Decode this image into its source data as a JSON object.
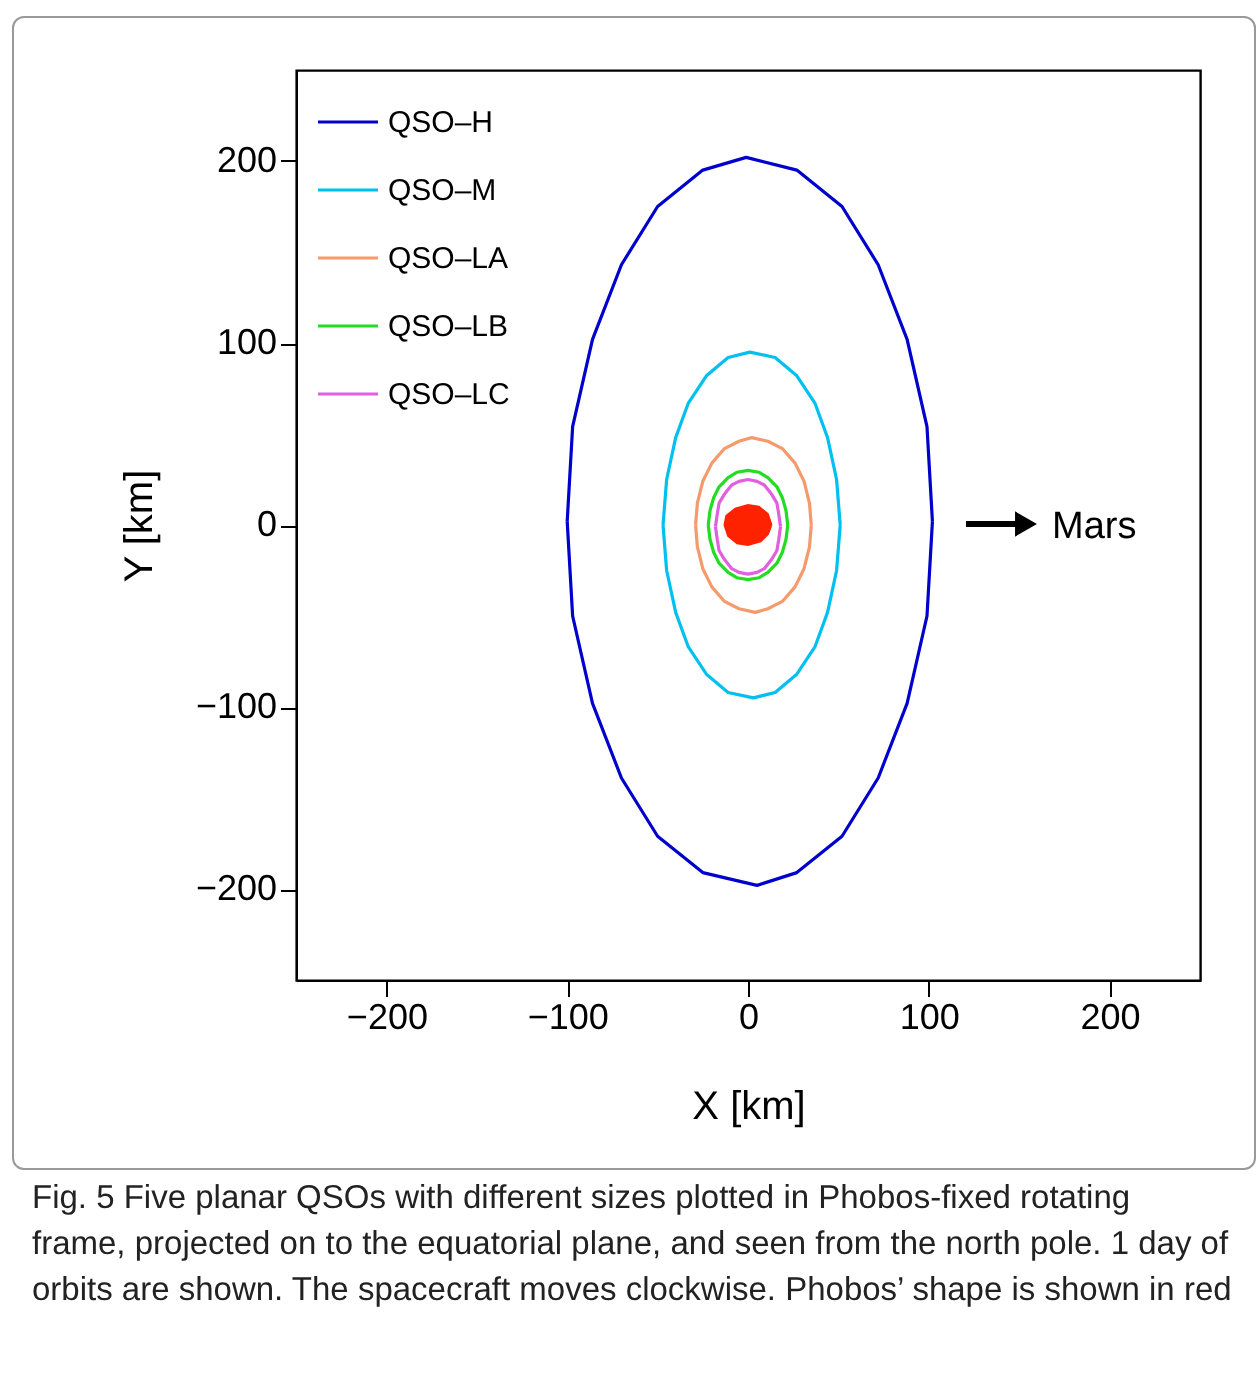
{
  "chart_data": {
    "type": "line",
    "xlabel": "X [km]",
    "ylabel": "Y [km]",
    "xlim": [
      -250,
      250
    ],
    "ylim": [
      -250,
      250
    ],
    "xticks": [
      -200,
      -100,
      0,
      100,
      200
    ],
    "yticks": [
      -200,
      -100,
      0,
      100,
      200
    ],
    "legend": "top left",
    "grid": false,
    "line_style": "solid",
    "marker": "none",
    "series": [
      {
        "name": "QSO–H",
        "color": "#0000cc",
        "x": [
          102,
          99,
          88,
          72,
          52,
          27,
          -1,
          -25,
          -50,
          -70,
          -86,
          -97,
          -100,
          null,
          -100,
          -97,
          -86,
          -70,
          -50,
          -25,
          5,
          27,
          52,
          72,
          88,
          99,
          102
        ],
        "values": [
          2,
          54,
          102,
          143,
          175,
          195,
          202,
          195,
          175,
          143,
          102,
          54,
          2,
          null,
          2,
          -50,
          -98,
          -139,
          -171,
          -191,
          -198,
          -191,
          -171,
          -139,
          -98,
          -50,
          2
        ]
      },
      {
        "name": "QSO–M",
        "color": "#00c0f0",
        "x": [
          51,
          49,
          44,
          37,
          27,
          15,
          1,
          -11,
          -23,
          -33,
          -40,
          -45,
          -47,
          null,
          -47,
          -45,
          -40,
          -33,
          -23,
          -11,
          3,
          15,
          27,
          37,
          44,
          49,
          51
        ],
        "values": [
          0,
          25,
          48,
          67,
          82,
          92,
          95,
          92,
          82,
          67,
          48,
          25,
          0,
          null,
          0,
          -25,
          -48,
          -67,
          -82,
          -92,
          -95,
          -92,
          -82,
          -67,
          -48,
          -25,
          0
        ]
      },
      {
        "name": "QSO–LA",
        "color": "#f59a6a",
        "x": [
          35,
          34,
          31,
          26,
          19,
          11,
          2,
          -5,
          -13,
          -20,
          -25,
          -28,
          -29,
          null,
          -29,
          -28,
          -25,
          -20,
          -13,
          -5,
          4,
          11,
          19,
          26,
          31,
          34,
          35
        ],
        "values": [
          0,
          12,
          24,
          34,
          42,
          46,
          48,
          46,
          42,
          34,
          24,
          12,
          0,
          null,
          0,
          -12,
          -24,
          -34,
          -42,
          -46,
          -48,
          -46,
          -42,
          -34,
          -24,
          -12,
          0
        ]
      },
      {
        "name": "QSO–LB",
        "color": "#22dd22",
        "x": [
          22,
          21,
          19,
          16,
          11,
          6,
          0,
          -6,
          -11,
          -16,
          -19,
          -21,
          -22,
          null,
          -22,
          -21,
          -19,
          -16,
          -11,
          -6,
          0,
          6,
          11,
          16,
          19,
          21,
          22
        ],
        "values": [
          0,
          8,
          15,
          21,
          26,
          29,
          30,
          29,
          26,
          21,
          15,
          8,
          0,
          null,
          0,
          -8,
          -15,
          -21,
          -26,
          -29,
          -30,
          -29,
          -26,
          -21,
          -15,
          -8,
          0
        ]
      },
      {
        "name": "QSO–LC",
        "color": "#e060e0",
        "x": [
          18,
          17,
          16,
          13,
          9,
          5,
          0,
          -5,
          -9,
          -13,
          -16,
          -17,
          -18,
          null,
          -18,
          -17,
          -16,
          -13,
          -9,
          -5,
          0,
          5,
          9,
          13,
          16,
          17,
          18
        ],
        "values": [
          -1,
          6,
          12,
          17,
          22,
          24,
          25,
          24,
          22,
          17,
          12,
          6,
          -1,
          null,
          -1,
          -8,
          -14,
          -19,
          -24,
          -26,
          -27,
          -26,
          -24,
          -19,
          -14,
          -8,
          -1
        ]
      },
      {
        "type": "area",
        "color": "#ff2200",
        "x": [
          13,
          11,
          6,
          0,
          -7,
          -12,
          -13,
          -11,
          -6,
          0,
          7,
          11,
          13
        ],
        "values": [
          0,
          6,
          10,
          11,
          9,
          5,
          0,
          -6,
          -10,
          -11,
          -9,
          -5,
          0
        ]
      }
    ],
    "annotations": [
      "Mars",
      "Fig. 5  Five planar QSOs with different sizes plotted in Phobos-fixed rotating frame, projected on to the equatorial plane, and seen from the north pole. 1 day of orbits are shown. The spacecraft moves clockwise. Phobos’ shape is shown in red"
    ]
  }
}
